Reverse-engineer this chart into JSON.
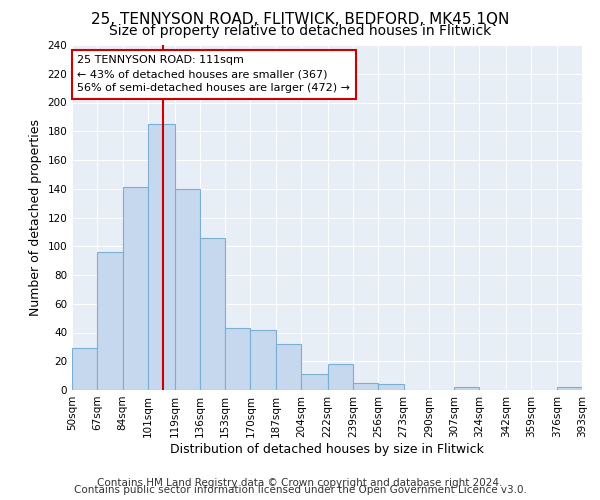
{
  "title": "25, TENNYSON ROAD, FLITWICK, BEDFORD, MK45 1QN",
  "subtitle": "Size of property relative to detached houses in Flitwick",
  "xlabel": "Distribution of detached houses by size in Flitwick",
  "ylabel": "Number of detached properties",
  "bar_edges": [
    50,
    67,
    84,
    101,
    119,
    136,
    153,
    170,
    187,
    204,
    222,
    239,
    256,
    273,
    290,
    307,
    324,
    342,
    359,
    376,
    393
  ],
  "bar_heights": [
    29,
    96,
    141,
    185,
    140,
    106,
    43,
    42,
    32,
    11,
    18,
    5,
    4,
    0,
    0,
    2,
    0,
    0,
    0,
    2
  ],
  "tick_labels": [
    "50sqm",
    "67sqm",
    "84sqm",
    "101sqm",
    "119sqm",
    "136sqm",
    "153sqm",
    "170sqm",
    "187sqm",
    "204sqm",
    "222sqm",
    "239sqm",
    "256sqm",
    "273sqm",
    "290sqm",
    "307sqm",
    "324sqm",
    "342sqm",
    "359sqm",
    "376sqm",
    "393sqm"
  ],
  "bar_color": "#c5d8ee",
  "bar_edge_color": "#7bafd4",
  "vline_x": 111,
  "vline_color": "#cc0000",
  "ylim": [
    0,
    240
  ],
  "yticks": [
    0,
    20,
    40,
    60,
    80,
    100,
    120,
    140,
    160,
    180,
    200,
    220,
    240
  ],
  "annotation_line1": "25 TENNYSON ROAD: 111sqm",
  "annotation_line2": "← 43% of detached houses are smaller (367)",
  "annotation_line3": "56% of semi-detached houses are larger (472) →",
  "footer1": "Contains HM Land Registry data © Crown copyright and database right 2024.",
  "footer2": "Contains public sector information licensed under the Open Government Licence v3.0.",
  "bg_color": "#ffffff",
  "plot_bg_color": "#e8eef6",
  "grid_color": "#ffffff",
  "title_fontsize": 11,
  "subtitle_fontsize": 10,
  "axis_label_fontsize": 9,
  "tick_fontsize": 7.5,
  "footer_fontsize": 7.5
}
